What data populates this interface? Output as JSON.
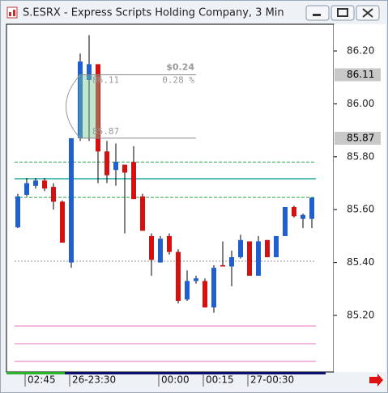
{
  "window": {
    "title": "S.ESRX - Express Scripts Holding Company, 3 Min"
  },
  "chart_data": {
    "type": "candlestick",
    "categories": [
      null,
      "02:45",
      null,
      null,
      null,
      null,
      "26-23:30",
      null,
      null,
      null,
      null,
      null,
      null,
      null,
      null,
      null,
      "00:00",
      null,
      null,
      null,
      null,
      "00:15",
      null,
      null,
      null,
      null,
      "27-00:30",
      null,
      null,
      null,
      null,
      null,
      null,
      null
    ],
    "open": [
      85.533,
      85.656,
      85.69,
      85.71,
      85.686,
      85.63,
      85.4,
      85.87,
      86.09,
      86.15,
      85.82,
      85.75,
      85.77,
      85.78,
      85.65,
      85.5,
      85.4,
      85.5,
      85.44,
      85.26,
      85.33,
      85.33,
      85.23,
      85.39,
      85.385,
      85.42,
      85.48,
      85.35,
      85.485,
      85.42,
      85.5,
      85.61,
      85.565,
      85.565
    ],
    "high": [
      85.66,
      85.72,
      85.72,
      85.72,
      85.7,
      85.635,
      85.87,
      86.19,
      86.26,
      86.15,
      85.86,
      85.85,
      85.77,
      85.84,
      85.66,
      85.51,
      85.5,
      85.51,
      85.45,
      85.37,
      85.35,
      85.34,
      85.39,
      85.48,
      85.445,
      85.505,
      85.48,
      85.5,
      85.485,
      85.5,
      85.61,
      85.615,
      85.585,
      85.645
    ],
    "low": [
      85.53,
      85.65,
      85.68,
      85.67,
      85.6,
      85.475,
      85.38,
      85.86,
      85.86,
      85.7,
      85.7,
      85.69,
      85.51,
      85.64,
      85.52,
      85.35,
      85.4,
      85.43,
      85.245,
      85.255,
      85.32,
      85.23,
      85.21,
      85.385,
      85.31,
      85.415,
      85.35,
      85.35,
      85.42,
      85.42,
      85.5,
      85.57,
      85.53,
      85.53
    ],
    "close": [
      85.65,
      85.7,
      85.71,
      85.68,
      85.63,
      85.475,
      85.87,
      86.16,
      86.15,
      85.82,
      85.73,
      85.78,
      85.74,
      85.64,
      85.52,
      85.41,
      85.49,
      85.44,
      85.255,
      85.33,
      85.34,
      85.23,
      85.38,
      85.385,
      85.42,
      85.485,
      85.35,
      85.48,
      85.42,
      85.5,
      85.61,
      85.575,
      85.58,
      85.645
    ],
    "up_color": "#1f5fd0",
    "down_color": "#d41010",
    "ylim": [
      84.986,
      86.301
    ],
    "yticks": [
      {
        "value": 85.2,
        "label": "85.20"
      },
      {
        "value": 85.4,
        "label": "85.40"
      },
      {
        "value": 85.6,
        "label": "85.60"
      },
      {
        "value": 85.8,
        "label": "85.80"
      },
      {
        "value": 86.0,
        "label": "86.00"
      },
      {
        "value": 86.2,
        "label": "86.20"
      }
    ],
    "levels": [
      {
        "value": 85.78,
        "color": "#2aa84a",
        "style": "dashed"
      },
      {
        "value": 85.646,
        "color": "#2aa84a",
        "style": "dashed"
      },
      {
        "value": 85.717,
        "color": "#20a8a0",
        "style": "solid"
      },
      {
        "value": 85.405,
        "color": "#999999",
        "style": "dotted"
      },
      {
        "value": 85.16,
        "color": "#f0a0d0",
        "style": "solid"
      },
      {
        "value": 85.093,
        "color": "#f0a0d0",
        "style": "solid"
      },
      {
        "value": 85.026,
        "color": "#f0a0d0",
        "style": "solid"
      }
    ],
    "markers": [
      {
        "value": 86.11,
        "label": "86.11"
      },
      {
        "value": 85.87,
        "label": "85.87"
      }
    ],
    "measure": {
      "change": "$0.24",
      "percent": "0.28 %"
    }
  }
}
